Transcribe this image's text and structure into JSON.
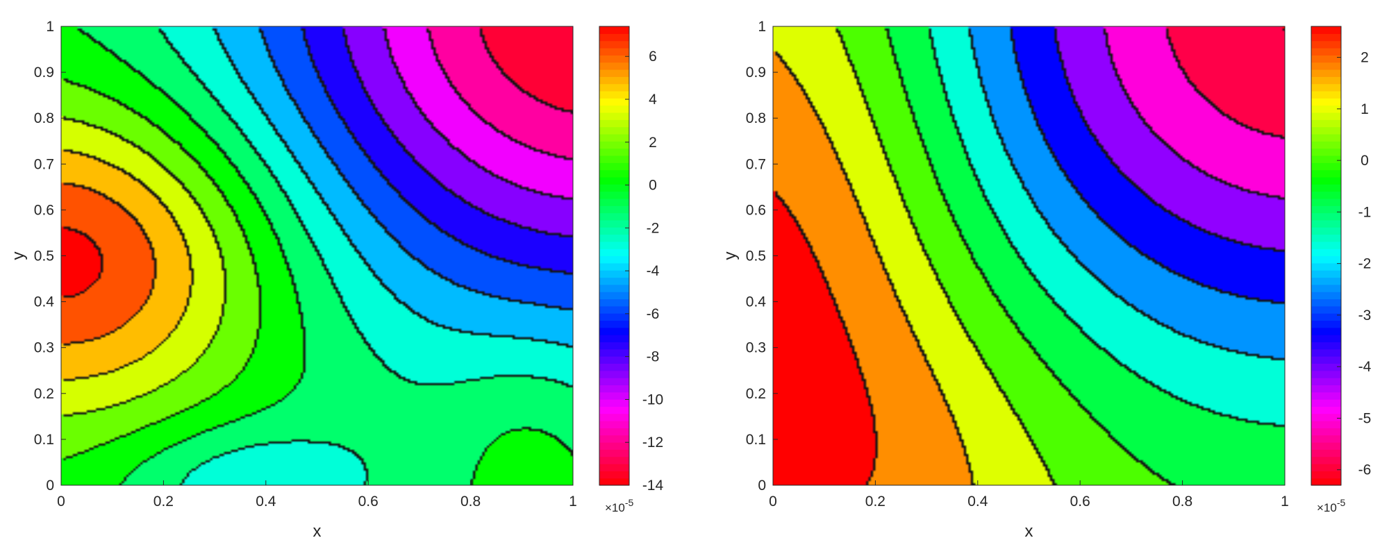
{
  "chart_data": [
    {
      "type": "heatmap",
      "subtype": "filled-contour",
      "colormap": "hsv-reversed",
      "title": "",
      "xlabel": "x",
      "ylabel": "y",
      "xlim": [
        0,
        1
      ],
      "ylim": [
        0,
        1
      ],
      "xticks": [
        "0",
        "0.2",
        "0.4",
        "0.6",
        "0.8",
        "1"
      ],
      "yticks": [
        "0",
        "0.1",
        "0.2",
        "0.3",
        "0.4",
        "0.5",
        "0.6",
        "0.7",
        "0.8",
        "0.9",
        "1"
      ],
      "colorbar": {
        "min": -14,
        "max": 7.4,
        "ticks": [
          "6",
          "4",
          "2",
          "0",
          "-2",
          "-4",
          "-6",
          "-8",
          "-10",
          "-12",
          "-14"
        ],
        "multiplier_base": "×10",
        "multiplier_exp": "-5"
      },
      "level_step": 1.5,
      "field_extremes": [
        {
          "x": 0.05,
          "y": 0.5,
          "value": 7.4,
          "kind": "max"
        },
        {
          "x": 1.0,
          "y": 1.0,
          "value": -14,
          "kind": "min"
        },
        {
          "x": 0.36,
          "y": 0.0,
          "value": -3.5,
          "kind": "local-min"
        }
      ]
    },
    {
      "type": "heatmap",
      "subtype": "filled-contour",
      "colormap": "hsv-reversed",
      "title": "",
      "xlabel": "x",
      "ylabel": "y",
      "xlim": [
        0,
        1
      ],
      "ylim": [
        0,
        1
      ],
      "xticks": [
        "0",
        "0.2",
        "0.4",
        "0.6",
        "0.8",
        "1"
      ],
      "yticks": [
        "0",
        "0.1",
        "0.2",
        "0.3",
        "0.4",
        "0.5",
        "0.6",
        "0.7",
        "0.8",
        "0.9",
        "1"
      ],
      "colorbar": {
        "min": -6.3,
        "max": 2.6,
        "ticks": [
          "2",
          "1",
          "0",
          "-1",
          "-2",
          "-3",
          "-4",
          "-5",
          "-6"
        ],
        "multiplier_base": "×10",
        "multiplier_exp": "-5"
      },
      "level_step": 0.85,
      "field_extremes": [
        {
          "x": 0.05,
          "y": 0.55,
          "value": 2.3,
          "kind": "max"
        },
        {
          "x": 1.0,
          "y": 1.0,
          "value": -6.3,
          "kind": "min"
        }
      ]
    }
  ]
}
